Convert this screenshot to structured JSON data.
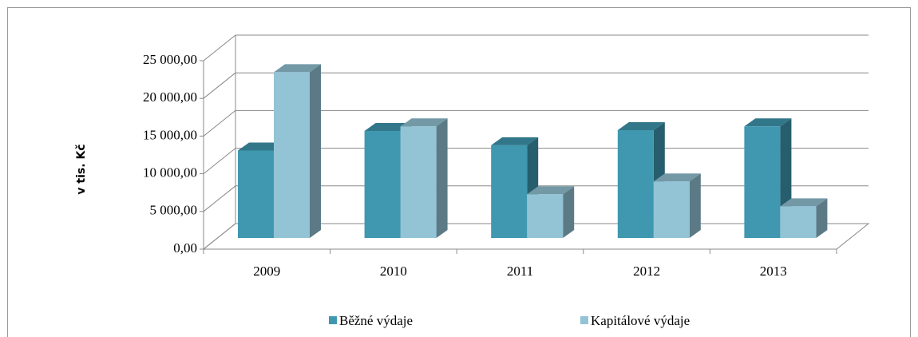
{
  "chart_data": {
    "type": "bar3d",
    "y_label": "v tis. Kč",
    "categories": [
      "2009",
      "2010",
      "2011",
      "2012",
      "2013"
    ],
    "series": [
      {
        "name": "Běžné výdaje",
        "color": "#3f98b0",
        "values": [
          11600,
          14200,
          12300,
          14300,
          14800
        ]
      },
      {
        "name": "Kapitálové výdaje",
        "color": "#93c4d6",
        "values": [
          22000,
          14800,
          5800,
          7500,
          4200
        ]
      }
    ],
    "ylim": [
      0,
      25000
    ],
    "yticks": [
      {
        "value": 0,
        "label": "0,00"
      },
      {
        "value": 5000,
        "label": "5 000,00"
      },
      {
        "value": 10000,
        "label": "10 000,00"
      },
      {
        "value": 15000,
        "label": "15 000,00"
      },
      {
        "value": 20000,
        "label": "20 000,00"
      },
      {
        "value": 25000,
        "label": "25 000,00"
      }
    ],
    "grid": true,
    "legend": "bottom"
  }
}
